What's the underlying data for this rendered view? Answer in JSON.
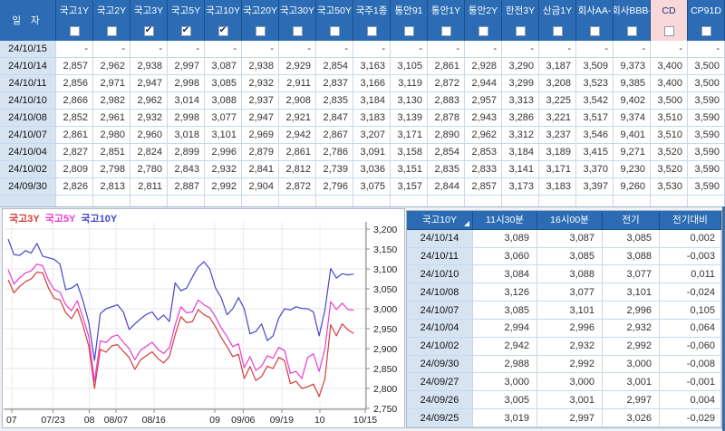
{
  "top_table": {
    "date_header": "일 자",
    "columns": [
      {
        "label": "국고1Y",
        "checked": false,
        "highlight": false
      },
      {
        "label": "국고2Y",
        "checked": false,
        "highlight": false
      },
      {
        "label": "국고3Y",
        "checked": true,
        "highlight": false
      },
      {
        "label": "국고5Y",
        "checked": true,
        "highlight": false
      },
      {
        "label": "국고10Y",
        "checked": true,
        "highlight": false
      },
      {
        "label": "국고20Y",
        "checked": false,
        "highlight": false
      },
      {
        "label": "국고30Y",
        "checked": false,
        "highlight": false
      },
      {
        "label": "국고50Y",
        "checked": false,
        "highlight": false
      },
      {
        "label": "국주1종",
        "checked": false,
        "highlight": false
      },
      {
        "label": "통안91",
        "checked": false,
        "highlight": false
      },
      {
        "label": "통안1Y",
        "checked": false,
        "highlight": false
      },
      {
        "label": "통안2Y",
        "checked": false,
        "highlight": false
      },
      {
        "label": "한전3Y",
        "checked": false,
        "highlight": false
      },
      {
        "label": "산금1Y",
        "checked": false,
        "highlight": false
      },
      {
        "label": "회사AA-",
        "checked": false,
        "highlight": false
      },
      {
        "label": "회사BBB-",
        "checked": false,
        "highlight": false
      },
      {
        "label": "CD",
        "checked": false,
        "highlight": true
      },
      {
        "label": "CP91D",
        "checked": false,
        "highlight": false
      }
    ],
    "rows": [
      {
        "date": "24/10/15",
        "values": [
          "-",
          "-",
          "-",
          "-",
          "-",
          "-",
          "-",
          "-",
          "-",
          "-",
          "-",
          "-",
          "-",
          "-",
          "-",
          "-",
          "-",
          "-"
        ]
      },
      {
        "date": "24/10/14",
        "values": [
          "2,857",
          "2,962",
          "2,938",
          "2,997",
          "3,087",
          "2,938",
          "2,929",
          "2,854",
          "3,163",
          "3,105",
          "2,861",
          "2,928",
          "3,290",
          "3,187",
          "3,509",
          "9,373",
          "3,400",
          "3,500"
        ]
      },
      {
        "date": "24/10/11",
        "values": [
          "2,856",
          "2,971",
          "2,947",
          "2,998",
          "3,085",
          "2,932",
          "2,911",
          "2,837",
          "3,166",
          "3,119",
          "2,872",
          "2,944",
          "3,299",
          "3,208",
          "3,523",
          "9,385",
          "3,400",
          "3,500"
        ]
      },
      {
        "date": "24/10/10",
        "values": [
          "2,866",
          "2,982",
          "2,962",
          "3,014",
          "3,088",
          "2,937",
          "2,908",
          "2,835",
          "3,184",
          "3,130",
          "2,883",
          "2,957",
          "3,313",
          "3,225",
          "3,542",
          "9,402",
          "3,500",
          "3,590"
        ]
      },
      {
        "date": "24/10/08",
        "values": [
          "2,852",
          "2,961",
          "2,932",
          "2,998",
          "3,077",
          "2,947",
          "2,921",
          "2,847",
          "3,183",
          "3,139",
          "2,878",
          "2,943",
          "3,286",
          "3,221",
          "3,517",
          "9,374",
          "3,510",
          "3,590"
        ]
      },
      {
        "date": "24/10/07",
        "values": [
          "2,861",
          "2,980",
          "2,960",
          "3,018",
          "3,101",
          "2,969",
          "2,942",
          "2,867",
          "3,207",
          "3,171",
          "2,890",
          "2,962",
          "3,312",
          "3,237",
          "3,546",
          "9,401",
          "3,510",
          "3,590"
        ]
      },
      {
        "date": "24/10/04",
        "values": [
          "2,827",
          "2,851",
          "2,824",
          "2,899",
          "2,996",
          "2,879",
          "2,861",
          "2,786",
          "3,091",
          "3,158",
          "2,854",
          "2,853",
          "3,184",
          "3,189",
          "3,415",
          "9,271",
          "3,520",
          "3,590"
        ]
      },
      {
        "date": "24/10/02",
        "values": [
          "2,809",
          "2,798",
          "2,780",
          "2,843",
          "2,932",
          "2,841",
          "2,812",
          "2,739",
          "3,036",
          "3,151",
          "2,835",
          "2,833",
          "3,141",
          "3,171",
          "3,370",
          "9,230",
          "3,520",
          "3,590"
        ]
      },
      {
        "date": "24/09/30",
        "values": [
          "2,826",
          "2,813",
          "2,811",
          "2,887",
          "2,992",
          "2,904",
          "2,872",
          "2,796",
          "3,075",
          "3,157",
          "2,844",
          "2,857",
          "3,173",
          "3,183",
          "3,397",
          "9,260",
          "3,530",
          "3,590"
        ]
      }
    ]
  },
  "chart": {
    "legend": [
      {
        "label": "국고3Y",
        "color": "#d43c3c"
      },
      {
        "label": "국고5Y",
        "color": "#e83cd4"
      },
      {
        "label": "국고10Y",
        "color": "#4646c8"
      }
    ]
  },
  "chart_data": {
    "type": "line",
    "title": "",
    "xlabel": "",
    "ylabel": "",
    "grid": true,
    "legend_position": "top-left",
    "x_range": [
      0,
      62
    ],
    "ylim": [
      2.748,
      3.2
    ],
    "y_ticks": {
      "values": [
        3.2,
        3.15,
        3.1,
        3.05,
        3.0,
        2.95,
        2.9,
        2.85,
        2.8,
        2.75
      ],
      "labels": [
        "3,200",
        "3,150",
        "3,100",
        "3,050",
        "3,000",
        "2,950",
        "2,900",
        "2,850",
        "2,800",
        "2,750"
      ]
    },
    "x_ticks": [
      {
        "label": "07",
        "pos": 0.6
      },
      {
        "label": "07/23",
        "pos": 7.8
      },
      {
        "label": "08",
        "pos": 14.1
      },
      {
        "label": "08/07",
        "pos": 18.7
      },
      {
        "label": "08/16",
        "pos": 25.3
      },
      {
        "label": "09",
        "pos": 35.9
      },
      {
        "label": "09/06",
        "pos": 40.8
      },
      {
        "label": "09/19",
        "pos": 47.5
      },
      {
        "label": "10",
        "pos": 54.1
      },
      {
        "label": "10/15",
        "pos": 62.0
      }
    ],
    "series": [
      {
        "name": "국고3Y",
        "color": "#d43c3c",
        "values": [
          3.073,
          3.04,
          3.056,
          3.068,
          3.075,
          3.092,
          3.09,
          3.052,
          3.026,
          3.022,
          2.99,
          2.975,
          3.0,
          2.958,
          2.906,
          2.8,
          2.898,
          2.891,
          2.907,
          2.91,
          2.893,
          2.878,
          2.848,
          2.872,
          2.882,
          2.892,
          2.875,
          2.864,
          2.88,
          2.935,
          2.98,
          2.965,
          2.968,
          2.998,
          2.985,
          2.978,
          2.955,
          2.928,
          2.905,
          2.88,
          2.886,
          2.825,
          2.855,
          2.82,
          2.83,
          2.856,
          2.85,
          2.878,
          2.87,
          2.812,
          2.818,
          2.8,
          2.804,
          2.811,
          2.78,
          2.824,
          2.96,
          2.932,
          2.962,
          2.947,
          2.938
        ]
      },
      {
        "name": "국고5Y",
        "color": "#e83cd4",
        "values": [
          3.098,
          3.062,
          3.078,
          3.09,
          3.095,
          3.112,
          3.108,
          3.072,
          3.048,
          3.042,
          3.01,
          2.995,
          3.02,
          2.978,
          2.93,
          2.818,
          2.92,
          2.915,
          2.93,
          2.934,
          2.916,
          2.9,
          2.872,
          2.896,
          2.906,
          2.916,
          2.898,
          2.888,
          2.902,
          2.96,
          3.005,
          2.99,
          2.992,
          3.022,
          3.01,
          3.002,
          2.98,
          2.952,
          2.93,
          2.905,
          2.912,
          2.852,
          2.88,
          2.845,
          2.856,
          2.882,
          2.876,
          2.903,
          2.895,
          2.838,
          2.843,
          2.825,
          2.878,
          2.887,
          2.843,
          2.899,
          3.018,
          2.998,
          3.014,
          2.998,
          2.997
        ]
      },
      {
        "name": "국고10Y",
        "color": "#4646c8",
        "values": [
          3.175,
          3.136,
          3.134,
          3.146,
          3.14,
          3.164,
          3.132,
          3.128,
          3.124,
          3.112,
          3.048,
          3.052,
          3.062,
          3.02,
          2.965,
          2.87,
          2.988,
          3.0,
          3.005,
          3.01,
          2.992,
          2.948,
          2.962,
          2.975,
          2.986,
          2.992,
          2.972,
          2.984,
          2.968,
          3.065,
          3.045,
          3.052,
          3.08,
          3.105,
          3.118,
          3.1,
          3.052,
          3.028,
          2.985,
          3.0,
          3.028,
          3.0,
          2.937,
          2.943,
          2.962,
          2.92,
          2.932,
          2.977,
          3.0,
          2.997,
          3.005,
          3.001,
          3.0,
          2.992,
          2.932,
          2.996,
          3.101,
          3.077,
          3.088,
          3.085,
          3.087
        ]
      }
    ]
  },
  "right_table": {
    "headers": [
      "국고10Y",
      "11시30분",
      "16시00분",
      "전기",
      "전기대비"
    ],
    "rows": [
      {
        "date": "24/10/14",
        "t1130": "3,089",
        "t1600": "3,087",
        "prev": "3,085",
        "diff": "0,002",
        "dir": "up"
      },
      {
        "date": "24/10/11",
        "t1130": "3,060",
        "t1600": "3,085",
        "prev": "3,088",
        "diff": "-0,003",
        "dir": "down"
      },
      {
        "date": "24/10/10",
        "t1130": "3,084",
        "t1600": "3,088",
        "prev": "3,077",
        "diff": "0,011",
        "dir": "up"
      },
      {
        "date": "24/10/08",
        "t1130": "3,126",
        "t1600": "3,077",
        "prev": "3,101",
        "diff": "-0,024",
        "dir": "down"
      },
      {
        "date": "24/10/07",
        "t1130": "3,085",
        "t1600": "3,101",
        "prev": "2,996",
        "diff": "0,105",
        "dir": "up"
      },
      {
        "date": "24/10/04",
        "t1130": "2,994",
        "t1600": "2,996",
        "prev": "2,932",
        "diff": "0,064",
        "dir": "up"
      },
      {
        "date": "24/10/02",
        "t1130": "2,942",
        "t1600": "2,932",
        "prev": "2,992",
        "diff": "-0,060",
        "dir": "down"
      },
      {
        "date": "24/09/30",
        "t1130": "2,988",
        "t1600": "2,992",
        "prev": "3,000",
        "diff": "-0,008",
        "dir": "down"
      },
      {
        "date": "24/09/27",
        "t1130": "3,000",
        "t1600": "3,000",
        "prev": "3,001",
        "diff": "-0,001",
        "dir": "down"
      },
      {
        "date": "24/09/26",
        "t1130": "3,005",
        "t1600": "3,001",
        "prev": "2,997",
        "diff": "0,004",
        "dir": "up"
      },
      {
        "date": "24/09/25",
        "t1130": "3,019",
        "t1600": "2,997",
        "prev": "3,026",
        "diff": "-0,029",
        "dir": "down"
      }
    ]
  },
  "colors": {
    "header_bg": "#2b6cb5",
    "header_text": "#ffffff",
    "cd_header_bg": "#f8d8d8",
    "date_cell_bg": "#d6e4f2",
    "grid_border": "#c6d9ec",
    "positive": "#e00000",
    "negative": "#2020d0",
    "series_3y": "#d43c3c",
    "series_5y": "#e83cd4",
    "series_10y": "#4646c8",
    "scrollbar": "#3a6ea5"
  }
}
